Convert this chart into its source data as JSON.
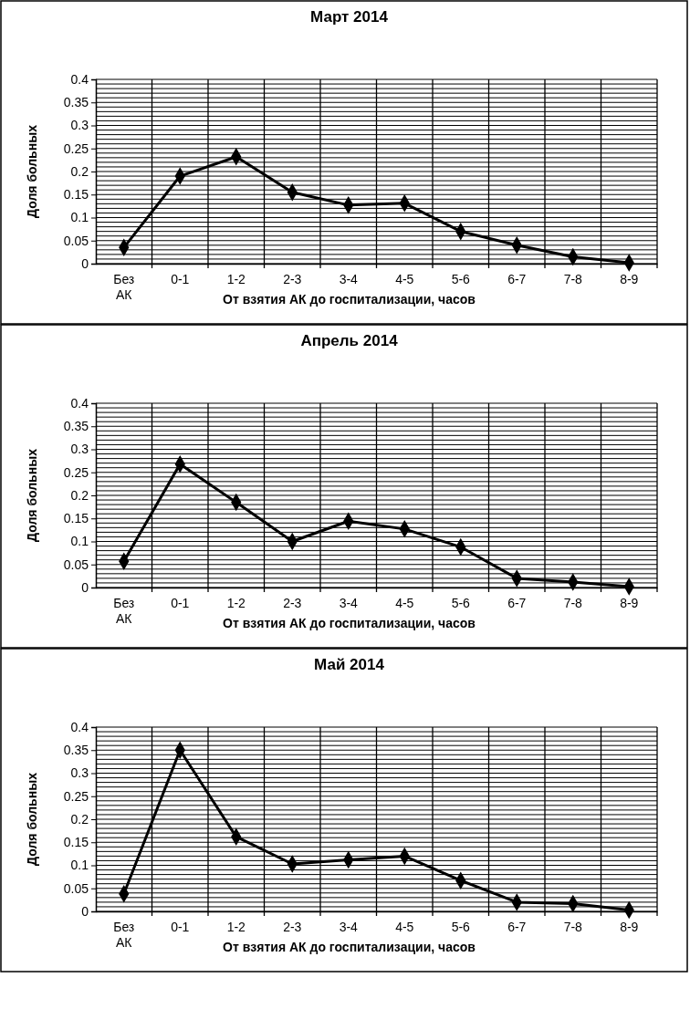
{
  "chart_data": [
    {
      "type": "line",
      "title": "Март 2014",
      "xlabel": "От взятия АК до госпитализации, часов",
      "ylabel": "Доля больных",
      "categories": [
        "Без АК",
        "0-1",
        "1-2",
        "2-3",
        "3-4",
        "4-5",
        "5-6",
        "6-7",
        "7-8",
        "8-9"
      ],
      "series": [
        {
          "color": "#000000",
          "values": [
            0.035,
            0.19,
            0.232,
            0.155,
            0.127,
            0.131,
            0.07,
            0.04,
            0.015,
            0.002
          ]
        }
      ],
      "ylim": [
        0,
        0.4
      ],
      "yticks": [
        0,
        0.05,
        0.1,
        0.15,
        0.2,
        0.25,
        0.3,
        0.35,
        0.4
      ],
      "grid": true,
      "marker": "diamond",
      "line_style": "solid"
    },
    {
      "type": "line",
      "title": "Апрель 2014",
      "xlabel": "От взятия АК до госпитализации, часов",
      "ylabel": "Доля больных",
      "categories": [
        "Без АК",
        "0-1",
        "1-2",
        "2-3",
        "3-4",
        "4-5",
        "5-6",
        "6-7",
        "7-8",
        "8-9"
      ],
      "series": [
        {
          "color": "#000000",
          "values": [
            0.057,
            0.268,
            0.185,
            0.1,
            0.144,
            0.127,
            0.088,
            0.02,
            0.012,
            0.002
          ]
        }
      ],
      "ylim": [
        0,
        0.4
      ],
      "yticks": [
        0,
        0.05,
        0.1,
        0.15,
        0.2,
        0.25,
        0.3,
        0.35,
        0.4
      ],
      "grid": true,
      "marker": "diamond",
      "line_style": "solid"
    },
    {
      "type": "line",
      "title": "Май 2014",
      "xlabel": "От взятия АК до госпитализации, часов",
      "ylabel": "Доля больных",
      "categories": [
        "Без АК",
        "0-1",
        "1-2",
        "2-3",
        "3-4",
        "4-5",
        "5-6",
        "6-7",
        "7-8",
        "8-9"
      ],
      "series": [
        {
          "color": "#000000",
          "values": [
            0.038,
            0.35,
            0.162,
            0.103,
            0.112,
            0.12,
            0.067,
            0.02,
            0.017,
            0.003
          ]
        }
      ],
      "ylim": [
        0,
        0.4
      ],
      "yticks": [
        0,
        0.05,
        0.1,
        0.15,
        0.2,
        0.25,
        0.3,
        0.35,
        0.4
      ],
      "grid": true,
      "marker": "diamond",
      "line_style": "solid"
    }
  ]
}
